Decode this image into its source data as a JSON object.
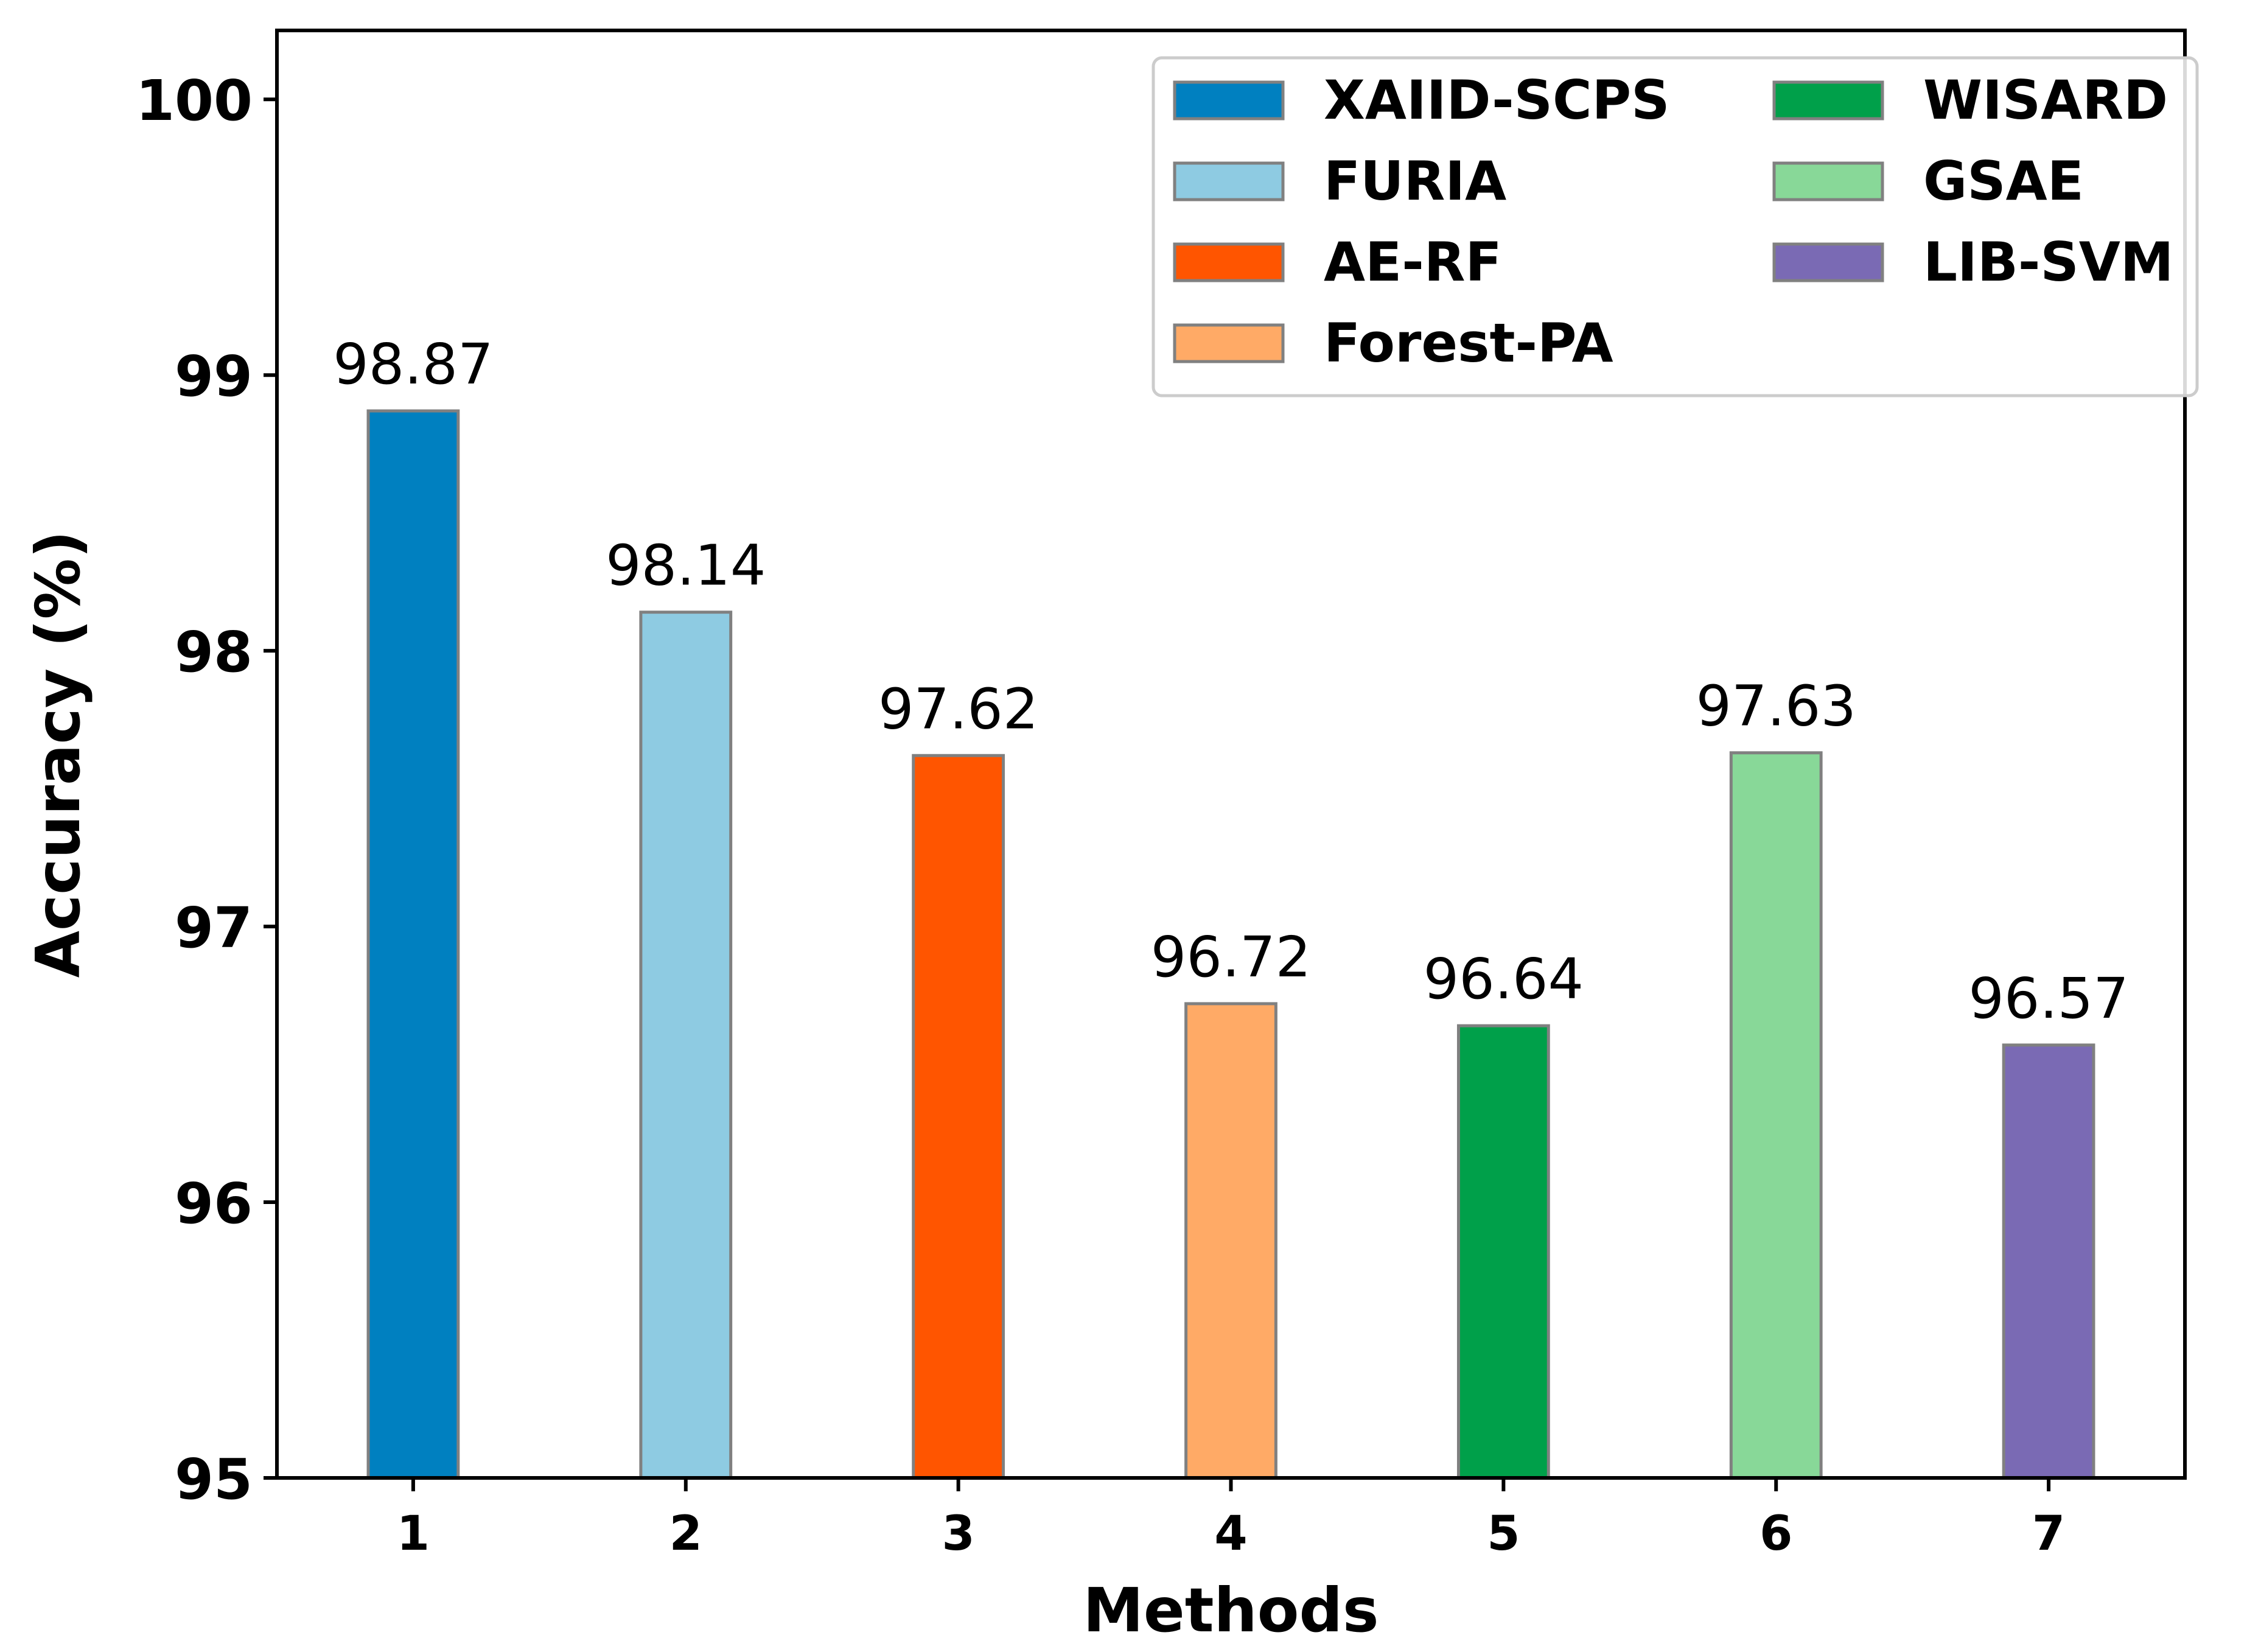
{
  "chart_data": {
    "type": "bar",
    "title": "",
    "xlabel": "Methods",
    "ylabel": "Accuracy (%)",
    "ylim": [
      95,
      100.25
    ],
    "yticks": [
      95,
      96,
      97,
      98,
      99,
      100
    ],
    "grid": false,
    "legend_position": "top-right",
    "legend_columns": 2,
    "bar_edge_color": "#808080",
    "categories": [
      "1",
      "2",
      "3",
      "4",
      "5",
      "6",
      "7"
    ],
    "series": [
      {
        "name": "XAIID-SCPS",
        "x": "1",
        "value": 98.87,
        "label": "98.87",
        "color": "#0080c0"
      },
      {
        "name": "FURIA",
        "x": "2",
        "value": 98.14,
        "label": "98.14",
        "color": "#8ecbe2"
      },
      {
        "name": "AE-RF",
        "x": "3",
        "value": 97.62,
        "label": "97.62",
        "color": "#ff5500"
      },
      {
        "name": "Forest-PA",
        "x": "4",
        "value": 96.72,
        "label": "96.72",
        "color": "#ffaa66"
      },
      {
        "name": "WISARD",
        "x": "5",
        "value": 96.64,
        "label": "96.64",
        "color": "#00a04a"
      },
      {
        "name": "GSAE",
        "x": "6",
        "value": 97.63,
        "label": "97.63",
        "color": "#88d898"
      },
      {
        "name": "LIB-SVM",
        "x": "7",
        "value": 96.57,
        "label": "96.57",
        "color": "#7a6ab4"
      }
    ]
  }
}
